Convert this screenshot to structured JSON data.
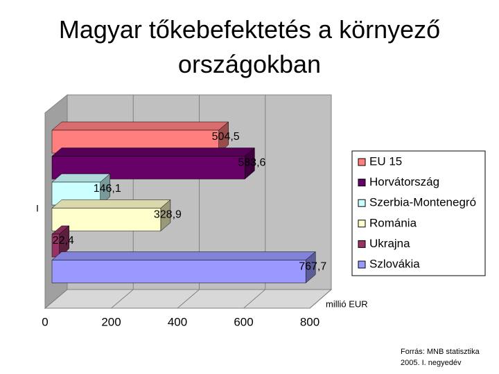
{
  "chart_data": {
    "type": "bar",
    "orientation": "horizontal",
    "title": "Magyar tőkebefektetés a környező országokban",
    "categories": [
      "I"
    ],
    "series": [
      {
        "name": "EU 15",
        "color": "#ff7f7f",
        "values": [
          504.5
        ],
        "value_labels": [
          "504,5"
        ]
      },
      {
        "name": "Horvátország",
        "color": "#660066",
        "values": [
          583.6
        ],
        "value_labels": [
          "583,6"
        ]
      },
      {
        "name": "Szerbia-Montenegró",
        "color": "#ccffff",
        "values": [
          146.1
        ],
        "value_labels": [
          "146,1"
        ]
      },
      {
        "name": "Románia",
        "color": "#ffffcc",
        "values": [
          328.9
        ],
        "value_labels": [
          "328,9"
        ]
      },
      {
        "name": "Ukrajna",
        "color": "#993366",
        "values": [
          22.4
        ],
        "value_labels": [
          "22,4"
        ]
      },
      {
        "name": "Szlovákia",
        "color": "#9999ff",
        "values": [
          767.7
        ],
        "value_labels": [
          "767,7"
        ]
      }
    ],
    "xlabel": "millió EUR",
    "xlim": [
      0,
      800
    ],
    "xticks": [
      0,
      200,
      400,
      600,
      800
    ],
    "grid": true,
    "legend": "right",
    "source": [
      "Forrás: MNB statisztika",
      "2005. I. negyedév"
    ]
  }
}
